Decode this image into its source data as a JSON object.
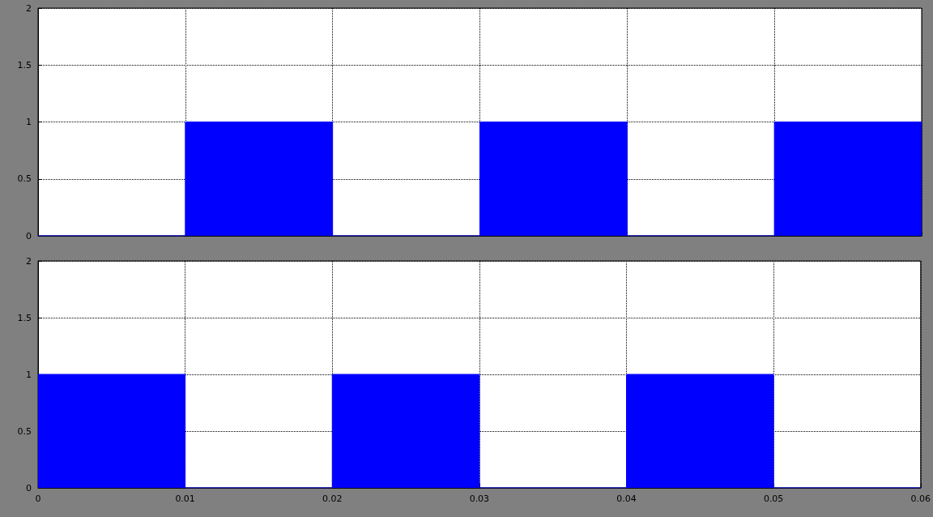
{
  "chart_data": [
    {
      "type": "area",
      "x": [
        0,
        0.01,
        0.01,
        0.02,
        0.02,
        0.03,
        0.03,
        0.04,
        0.04,
        0.05,
        0.05,
        0.06
      ],
      "series": [
        {
          "color": "#0000ff",
          "values": [
            0,
            0,
            1,
            1,
            0,
            0,
            1,
            1,
            0,
            0,
            1,
            1
          ]
        }
      ],
      "xlim": [
        0,
        0.06
      ],
      "xticks": [
        0,
        0.01,
        0.02,
        0.03,
        0.04,
        0.05,
        0.06
      ],
      "ylim": [
        0,
        2
      ],
      "yticks": [
        0,
        0.5,
        1,
        1.5,
        2
      ],
      "grid": true,
      "tick_labels": "y"
    },
    {
      "type": "area",
      "x": [
        0,
        0.01,
        0.01,
        0.02,
        0.02,
        0.03,
        0.03,
        0.04,
        0.04,
        0.05,
        0.05,
        0.06
      ],
      "series": [
        {
          "color": "#0000ff",
          "values": [
            1,
            1,
            0,
            0,
            1,
            1,
            0,
            0,
            1,
            1,
            0,
            0
          ]
        }
      ],
      "xlim": [
        0,
        0.06
      ],
      "xticks": [
        0,
        0.01,
        0.02,
        0.03,
        0.04,
        0.05,
        0.06
      ],
      "ylim": [
        0,
        2
      ],
      "yticks": [
        0,
        0.5,
        1,
        1.5,
        2
      ],
      "grid": true
    }
  ]
}
